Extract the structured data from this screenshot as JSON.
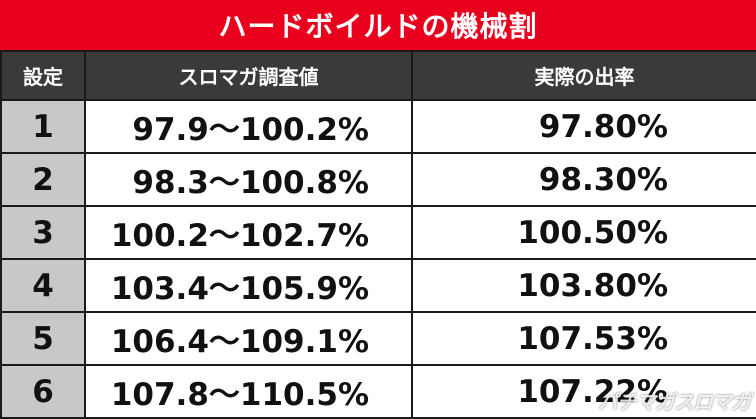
{
  "title": "ハードボイルドの機械割",
  "headers": [
    "設定",
    "スロマガ調査値",
    "実際の出率"
  ],
  "rows": [
    {
      "setting": "1",
      "range": "97.9〜100.2%",
      "payout": "97.80%"
    },
    {
      "setting": "2",
      "range": "98.3〜100.8%",
      "payout": "98.30%"
    },
    {
      "setting": "3",
      "range": "100.2〜102.7%",
      "payout": "100.50%"
    },
    {
      "setting": "4",
      "range": "103.4〜105.9%",
      "payout": "103.80%"
    },
    {
      "setting": "5",
      "range": "106.4〜109.1%",
      "payout": "107.53%"
    },
    {
      "setting": "6",
      "range": "107.8〜110.5%",
      "payout": "107.22%"
    }
  ],
  "watermark": "パチマガスロマガ",
  "colors": {
    "title_bg": "#e8001c",
    "header_bg": "#3a3a3a",
    "setting_bg": "#c8c8c8"
  }
}
